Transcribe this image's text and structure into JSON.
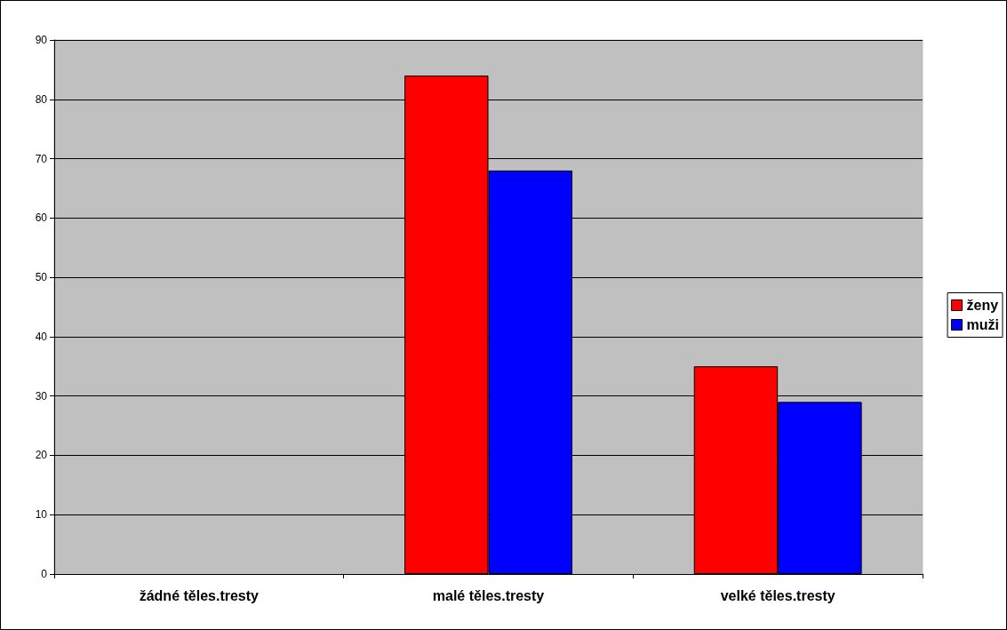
{
  "chart_data": {
    "type": "bar",
    "categories": [
      "žádné těles.tresty",
      "malé těles.tresty",
      "velké těles.tresty"
    ],
    "series": [
      {
        "name": "ženy",
        "color": "#ff0000",
        "values": [
          0,
          84,
          35
        ]
      },
      {
        "name": "muži",
        "color": "#0000ff",
        "values": [
          0,
          68,
          29
        ]
      }
    ],
    "ylim": [
      0,
      90
    ],
    "yticks": [
      0,
      10,
      20,
      30,
      40,
      50,
      60,
      70,
      80,
      90
    ],
    "grid": "y",
    "legend": "right"
  }
}
